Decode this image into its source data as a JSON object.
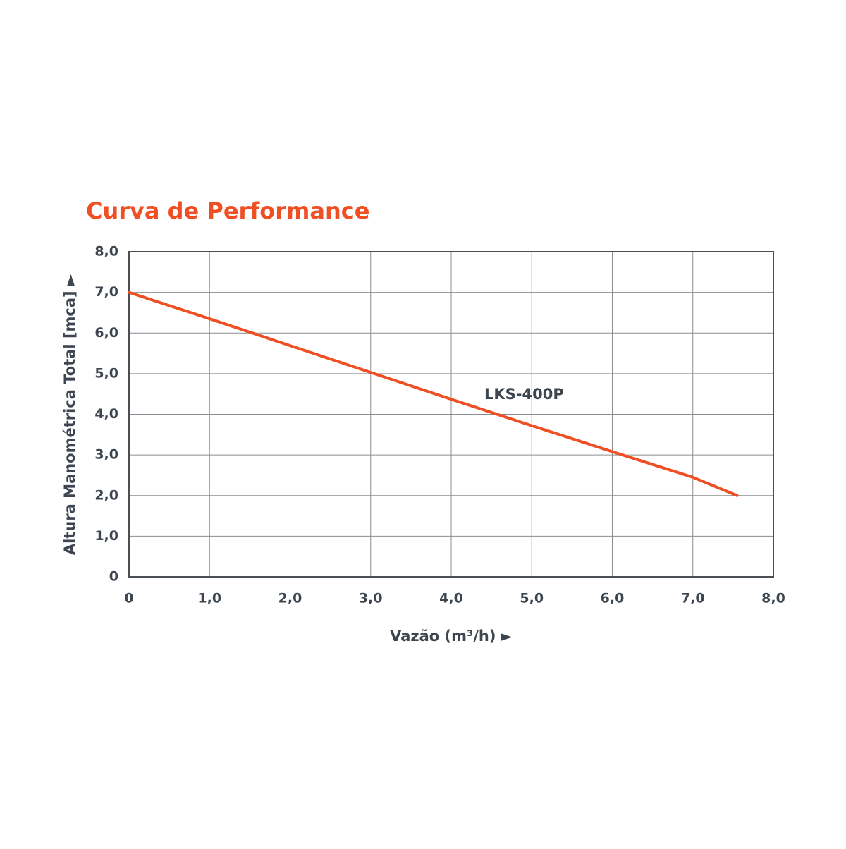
{
  "chart_data": {
    "type": "line",
    "title": "Curva de Performance",
    "x_label": "Vazão (m³/h) ►",
    "y_label": "Altura Manométrica Total [mca] ►",
    "x": [
      0,
      1,
      2,
      3,
      4,
      5,
      6,
      7,
      7.55
    ],
    "series": [
      {
        "name": "LKS-400P",
        "color": "#f04e23",
        "values": [
          7.0,
          6.35,
          5.69,
          5.03,
          4.37,
          3.72,
          3.08,
          2.45,
          2.0
        ]
      }
    ],
    "xlim": [
      0,
      8
    ],
    "ylim": [
      0,
      8
    ],
    "xticks": [
      0,
      {
        "value": 1,
        "label": "1,0"
      },
      {
        "value": 2,
        "label": "2,0"
      },
      {
        "value": 3,
        "label": "3,0"
      },
      {
        "value": 4,
        "label": "4,0"
      },
      {
        "value": 5,
        "label": "5,0"
      },
      {
        "value": 6,
        "label": "6,0"
      },
      {
        "value": 7,
        "label": "7,0"
      },
      {
        "value": 8,
        "label": "8,0"
      }
    ],
    "yticks": [
      0,
      {
        "value": 1,
        "label": "1,0"
      },
      {
        "value": 2,
        "label": "2,0"
      },
      {
        "value": 3,
        "label": "3,0"
      },
      {
        "value": 4,
        "label": "4,0"
      },
      {
        "value": 5,
        "label": "5,0"
      },
      {
        "value": 6,
        "label": "6,0"
      },
      {
        "value": 7,
        "label": "7,0"
      },
      {
        "value": 8,
        "label": "8,0"
      }
    ],
    "grid": true
  }
}
